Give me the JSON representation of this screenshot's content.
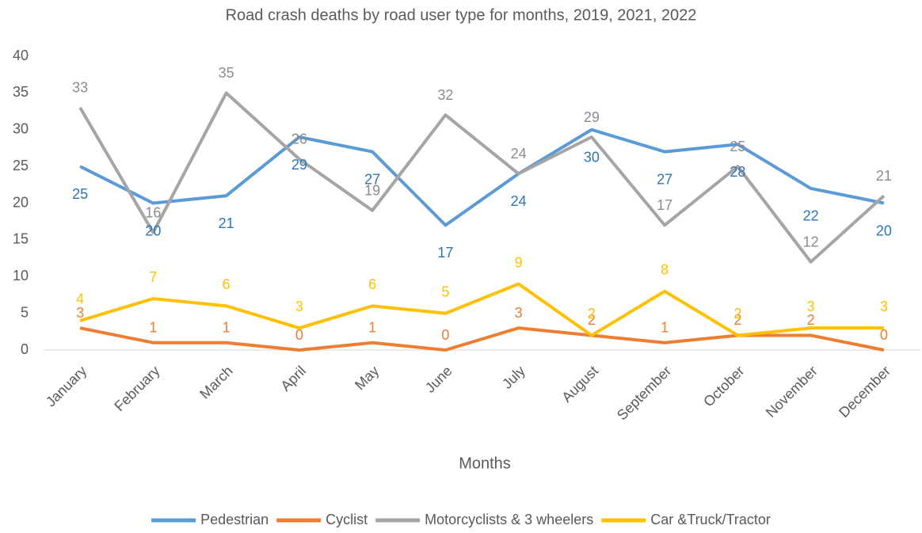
{
  "chart_data": {
    "type": "line",
    "title": "Road crash deaths by road user type for months, 2019, 2021, 2022",
    "x_label": "Months",
    "categories": [
      "January",
      "February",
      "March",
      "April",
      "May",
      "June",
      "July",
      "August",
      "September",
      "October",
      "November",
      "December"
    ],
    "series": [
      {
        "name": "Pedestrian",
        "color": "#5b9bd5",
        "values": [
          25,
          20,
          21,
          29,
          27,
          17,
          24,
          30,
          27,
          28,
          22,
          20
        ]
      },
      {
        "name": "Cyclist",
        "color": "#ed7d31",
        "values": [
          3,
          1,
          1,
          0,
          1,
          0,
          3,
          2,
          1,
          2,
          2,
          0
        ]
      },
      {
        "name": "Motorcyclists & 3 wheelers",
        "color": "#a5a5a5",
        "values": [
          33,
          16,
          35,
          26,
          19,
          32,
          24,
          29,
          17,
          25,
          12,
          21
        ]
      },
      {
        "name": "Car &Truck/Tractor",
        "color": "#ffc000",
        "values": [
          4,
          7,
          6,
          3,
          6,
          5,
          9,
          2,
          8,
          2,
          3,
          3
        ]
      }
    ],
    "ylim": [
      0,
      40
    ],
    "yticks": [
      0,
      5,
      10,
      15,
      20,
      25,
      30,
      35,
      40
    ],
    "grid": false,
    "legend": "bottom"
  }
}
